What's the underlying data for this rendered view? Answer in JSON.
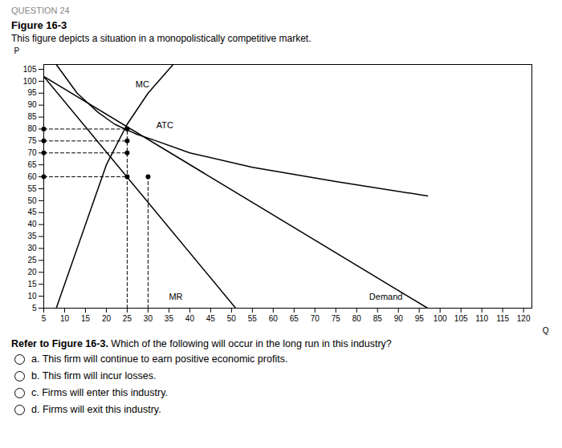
{
  "chart_data": {
    "type": "line",
    "header": "QUESTION 24",
    "title": "Figure 16-3",
    "subtitle": "This figure depicts a situation in a monopolistically competitive market.",
    "xlabel": "Q",
    "ylabel": "P",
    "xlim": [
      5,
      122
    ],
    "ylim": [
      5,
      107
    ],
    "xticks": [
      5,
      10,
      15,
      20,
      25,
      30,
      35,
      40,
      45,
      50,
      55,
      60,
      65,
      70,
      75,
      80,
      85,
      90,
      95,
      100,
      105,
      110,
      115,
      120
    ],
    "yticks": [
      5,
      10,
      15,
      20,
      25,
      30,
      35,
      40,
      45,
      50,
      55,
      60,
      65,
      70,
      75,
      80,
      85,
      90,
      95,
      100,
      105
    ],
    "grid": false,
    "series": [
      {
        "name": "Demand",
        "color": "#000000",
        "x": [
          5,
          97
        ],
        "values": [
          102,
          5
        ],
        "label_at": [
          83,
          8
        ]
      },
      {
        "name": "MR",
        "color": "#000000",
        "x": [
          5,
          51
        ],
        "values": [
          102,
          5
        ],
        "label_at": [
          35,
          8
        ]
      },
      {
        "name": "MC",
        "color": "#000000",
        "x": [
          8,
          13,
          20,
          25,
          30,
          36
        ],
        "values": [
          5,
          30,
          65,
          82,
          95,
          107
        ],
        "label_at": [
          27,
          97
        ]
      },
      {
        "name": "ATC",
        "color": "#000000",
        "x": [
          8,
          13,
          18,
          22,
          27,
          32,
          40,
          55,
          75,
          97
        ],
        "values": [
          107,
          95,
          87,
          82,
          78,
          75,
          70,
          64,
          58,
          52
        ],
        "label_at": [
          32,
          80
        ]
      }
    ],
    "reference_lines": [
      {
        "x": [
          5,
          25
        ],
        "values": [
          80,
          80
        ],
        "line_style": "dashed",
        "color": "#000000"
      },
      {
        "x": [
          5,
          25
        ],
        "values": [
          75,
          75
        ],
        "line_style": "dashed",
        "color": "#000000"
      },
      {
        "x": [
          5,
          25
        ],
        "values": [
          70,
          70
        ],
        "line_style": "dashed",
        "color": "#000000"
      },
      {
        "x": [
          5,
          25
        ],
        "values": [
          60,
          60
        ],
        "line_style": "dashed",
        "color": "#000000"
      },
      {
        "x": [
          25,
          25
        ],
        "values": [
          5,
          80
        ],
        "line_style": "dashed",
        "color": "#000000"
      },
      {
        "x": [
          30,
          30
        ],
        "values": [
          5,
          60
        ],
        "line_style": "dashed",
        "color": "#000000"
      }
    ],
    "points": {
      "x": [
        5,
        25,
        5,
        25,
        5,
        25,
        5,
        25,
        30
      ],
      "values": [
        80,
        80,
        75,
        75,
        70,
        70,
        60,
        60,
        60
      ],
      "marker": "circle",
      "color": "#000000"
    },
    "question_bold": "Refer to Figure 16-3.",
    "question_rest": " Which of the following will occur in the long run in this industry?",
    "answers": [
      "a. This firm will continue to earn positive economic profits.",
      "b. This firm will incur losses.",
      "c. Firms will enter this industry.",
      "d. Firms will exit this industry."
    ]
  }
}
